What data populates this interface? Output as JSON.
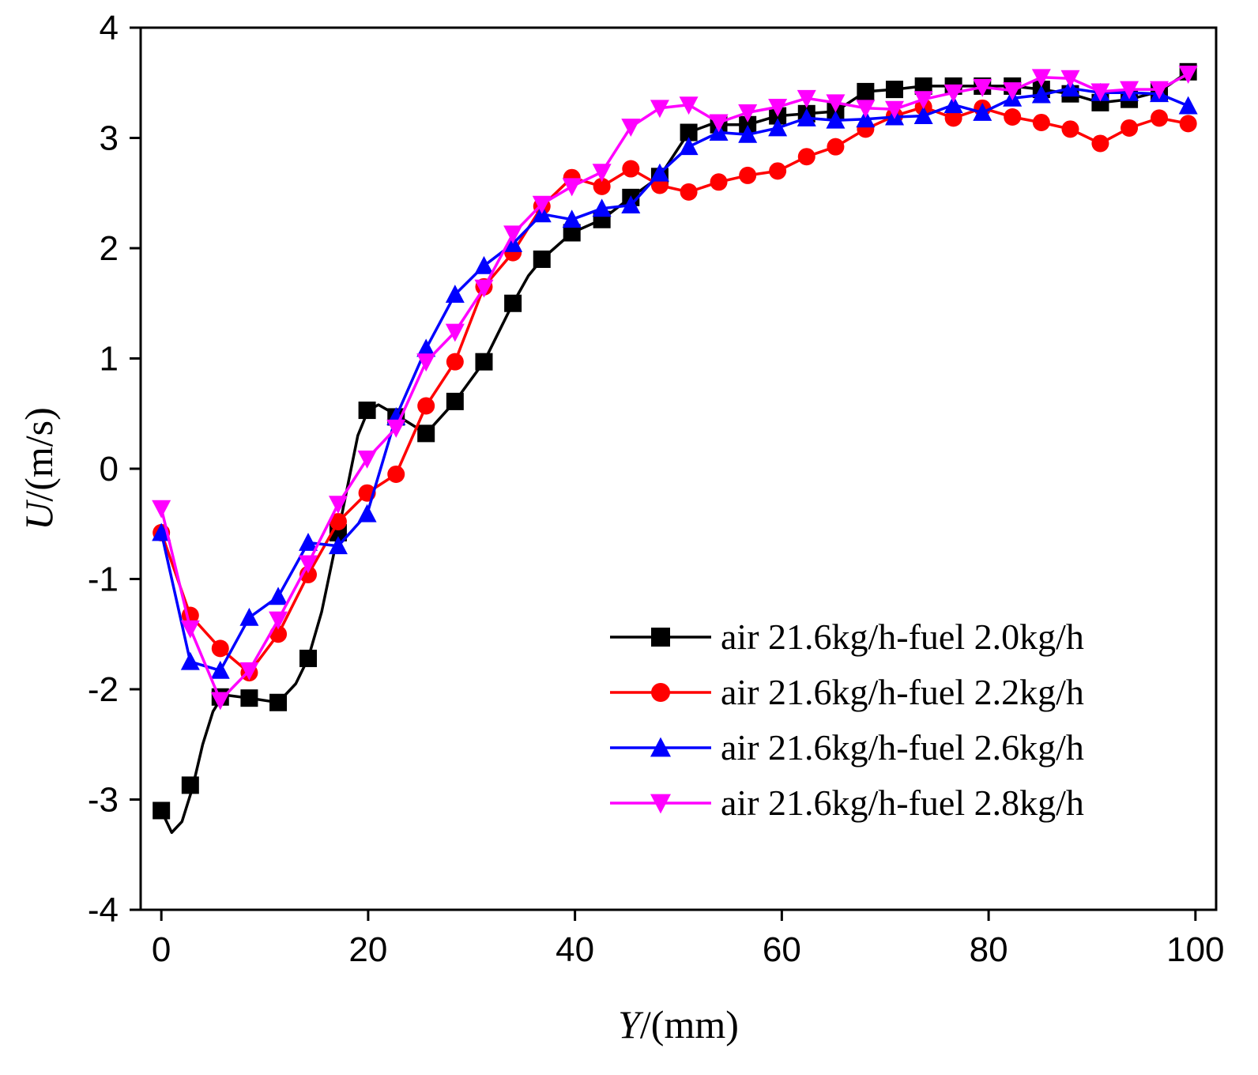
{
  "chart_data": {
    "type": "line",
    "xlabel_var": "Y",
    "xlabel_unit": "/(mm)",
    "ylabel_var": "U",
    "ylabel_unit": "/(m/s)",
    "xlim": [
      -2,
      102
    ],
    "ylim": [
      -4,
      4
    ],
    "xticks": [
      0,
      20,
      40,
      60,
      80,
      100
    ],
    "yticks": [
      -4,
      -3,
      -2,
      -1,
      0,
      1,
      2,
      3,
      4
    ],
    "legend_position": "bottom-right",
    "grid": false,
    "series": [
      {
        "name": "air 21.6kg/h-fuel 2.0kg/h",
        "color": "#000000",
        "marker": "square",
        "curve": [
          [
            0,
            -3.1
          ],
          [
            1,
            -3.3
          ],
          [
            2,
            -3.2
          ],
          [
            3,
            -2.9
          ],
          [
            4,
            -2.5
          ],
          [
            5,
            -2.2
          ],
          [
            6,
            -2.05
          ],
          [
            8.5,
            -2.08
          ],
          [
            11.3,
            -2.12
          ],
          [
            13,
            -1.95
          ],
          [
            14.2,
            -1.72
          ],
          [
            15.5,
            -1.3
          ],
          [
            17.1,
            -0.58
          ],
          [
            19,
            0.3
          ],
          [
            20,
            0.53
          ],
          [
            21,
            0.58
          ],
          [
            22.5,
            0.5
          ],
          [
            25.6,
            0.32
          ],
          [
            28.4,
            0.61
          ],
          [
            31.2,
            0.97
          ],
          [
            34,
            1.5
          ],
          [
            35.5,
            1.75
          ],
          [
            36.8,
            1.9
          ],
          [
            39.7,
            2.14
          ],
          [
            42.6,
            2.26
          ],
          [
            45.4,
            2.46
          ],
          [
            48.2,
            2.65
          ],
          [
            51,
            3.05
          ],
          [
            53,
            3.12
          ],
          [
            56.7,
            3.12
          ],
          [
            59.6,
            3.2
          ],
          [
            62.4,
            3.22
          ],
          [
            65.2,
            3.24
          ],
          [
            68.1,
            3.42
          ],
          [
            70.9,
            3.44
          ],
          [
            73.7,
            3.47
          ],
          [
            76.6,
            3.47
          ],
          [
            79.4,
            3.47
          ],
          [
            82.3,
            3.47
          ],
          [
            85.1,
            3.44
          ],
          [
            87.9,
            3.4
          ],
          [
            90.8,
            3.32
          ],
          [
            93.6,
            3.35
          ],
          [
            96.5,
            3.42
          ],
          [
            99.3,
            3.6
          ]
        ],
        "markers": [
          [
            0,
            -3.1
          ],
          [
            2.8,
            -2.87
          ],
          [
            5.7,
            -2.07
          ],
          [
            8.5,
            -2.08
          ],
          [
            11.3,
            -2.12
          ],
          [
            14.2,
            -1.72
          ],
          [
            17.1,
            -0.58
          ],
          [
            19.9,
            0.53
          ],
          [
            22.7,
            0.47
          ],
          [
            25.6,
            0.32
          ],
          [
            28.4,
            0.61
          ],
          [
            31.2,
            0.97
          ],
          [
            34,
            1.5
          ],
          [
            36.8,
            1.9
          ],
          [
            39.7,
            2.14
          ],
          [
            42.6,
            2.26
          ],
          [
            45.4,
            2.46
          ],
          [
            48.2,
            2.65
          ],
          [
            51,
            3.05
          ],
          [
            53.9,
            3.12
          ],
          [
            56.7,
            3.12
          ],
          [
            59.6,
            3.2
          ],
          [
            62.4,
            3.22
          ],
          [
            65.2,
            3.24
          ],
          [
            68.1,
            3.42
          ],
          [
            70.9,
            3.44
          ],
          [
            73.7,
            3.47
          ],
          [
            76.6,
            3.47
          ],
          [
            79.4,
            3.47
          ],
          [
            82.3,
            3.47
          ],
          [
            85.1,
            3.44
          ],
          [
            87.9,
            3.4
          ],
          [
            90.8,
            3.32
          ],
          [
            93.6,
            3.35
          ],
          [
            96.5,
            3.42
          ],
          [
            99.3,
            3.6
          ]
        ]
      },
      {
        "name": "air 21.6kg/h-fuel 2.2kg/h",
        "color": "#ff0000",
        "marker": "circle",
        "markers": [
          [
            0,
            -0.58
          ],
          [
            2.8,
            -1.33
          ],
          [
            5.7,
            -1.63
          ],
          [
            8.5,
            -1.85
          ],
          [
            11.3,
            -1.5
          ],
          [
            14.2,
            -0.96
          ],
          [
            17.1,
            -0.48
          ],
          [
            19.9,
            -0.22
          ],
          [
            22.7,
            -0.05
          ],
          [
            25.6,
            0.57
          ],
          [
            28.4,
            0.97
          ],
          [
            31.2,
            1.65
          ],
          [
            34,
            1.96
          ],
          [
            36.8,
            2.38
          ],
          [
            39.7,
            2.64
          ],
          [
            42.6,
            2.56
          ],
          [
            45.4,
            2.72
          ],
          [
            48.2,
            2.57
          ],
          [
            51,
            2.51
          ],
          [
            53.9,
            2.6
          ],
          [
            56.7,
            2.66
          ],
          [
            59.6,
            2.7
          ],
          [
            62.4,
            2.83
          ],
          [
            65.2,
            2.92
          ],
          [
            68.1,
            3.08
          ],
          [
            70.9,
            3.2
          ],
          [
            73.7,
            3.28
          ],
          [
            76.6,
            3.18
          ],
          [
            79.4,
            3.27
          ],
          [
            82.3,
            3.19
          ],
          [
            85.1,
            3.14
          ],
          [
            87.9,
            3.08
          ],
          [
            90.8,
            2.95
          ],
          [
            93.6,
            3.09
          ],
          [
            96.5,
            3.18
          ],
          [
            99.3,
            3.13
          ]
        ]
      },
      {
        "name": "air 21.6kg/h-fuel 2.6kg/h",
        "color": "#0000ff",
        "marker": "triangle-up",
        "markers": [
          [
            0,
            -0.58
          ],
          [
            2.8,
            -1.75
          ],
          [
            5.7,
            -1.83
          ],
          [
            8.5,
            -1.35
          ],
          [
            11.3,
            -1.16
          ],
          [
            14.2,
            -0.67
          ],
          [
            17.1,
            -0.7
          ],
          [
            19.9,
            -0.41
          ],
          [
            22.7,
            0.47
          ],
          [
            25.6,
            1.09
          ],
          [
            28.4,
            1.58
          ],
          [
            31.2,
            1.84
          ],
          [
            34,
            2.04
          ],
          [
            36.8,
            2.31
          ],
          [
            39.7,
            2.26
          ],
          [
            42.6,
            2.36
          ],
          [
            45.4,
            2.39
          ],
          [
            48.2,
            2.68
          ],
          [
            51,
            2.92
          ],
          [
            53.9,
            3.05
          ],
          [
            56.7,
            3.03
          ],
          [
            59.6,
            3.09
          ],
          [
            62.4,
            3.18
          ],
          [
            65.2,
            3.16
          ],
          [
            68.1,
            3.17
          ],
          [
            70.9,
            3.19
          ],
          [
            73.7,
            3.2
          ],
          [
            76.6,
            3.3
          ],
          [
            79.4,
            3.23
          ],
          [
            82.3,
            3.36
          ],
          [
            85.1,
            3.39
          ],
          [
            87.9,
            3.45
          ],
          [
            90.8,
            3.41
          ],
          [
            93.6,
            3.41
          ],
          [
            96.5,
            3.4
          ],
          [
            99.3,
            3.29
          ]
        ]
      },
      {
        "name": "air 21.6kg/h-fuel 2.8kg/h",
        "color": "#ff00ff",
        "marker": "triangle-down",
        "markers": [
          [
            0,
            -0.36
          ],
          [
            2.8,
            -1.45
          ],
          [
            5.7,
            -2.1
          ],
          [
            8.5,
            -1.83
          ],
          [
            11.3,
            -1.37
          ],
          [
            14.2,
            -0.86
          ],
          [
            17.1,
            -0.32
          ],
          [
            19.9,
            0.09
          ],
          [
            22.7,
            0.37
          ],
          [
            25.6,
            0.97
          ],
          [
            28.4,
            1.24
          ],
          [
            31.2,
            1.64
          ],
          [
            34,
            2.13
          ],
          [
            36.8,
            2.4
          ],
          [
            39.7,
            2.56
          ],
          [
            42.6,
            2.69
          ],
          [
            45.4,
            3.1
          ],
          [
            48.2,
            3.27
          ],
          [
            51,
            3.3
          ],
          [
            53.9,
            3.14
          ],
          [
            56.7,
            3.23
          ],
          [
            59.6,
            3.28
          ],
          [
            62.4,
            3.36
          ],
          [
            65.2,
            3.32
          ],
          [
            68.1,
            3.27
          ],
          [
            70.9,
            3.26
          ],
          [
            73.7,
            3.35
          ],
          [
            76.6,
            3.41
          ],
          [
            79.4,
            3.46
          ],
          [
            82.3,
            3.43
          ],
          [
            85.1,
            3.55
          ],
          [
            87.9,
            3.54
          ],
          [
            90.8,
            3.42
          ],
          [
            93.6,
            3.44
          ],
          [
            96.5,
            3.44
          ],
          [
            99.3,
            3.58
          ]
        ]
      }
    ]
  }
}
